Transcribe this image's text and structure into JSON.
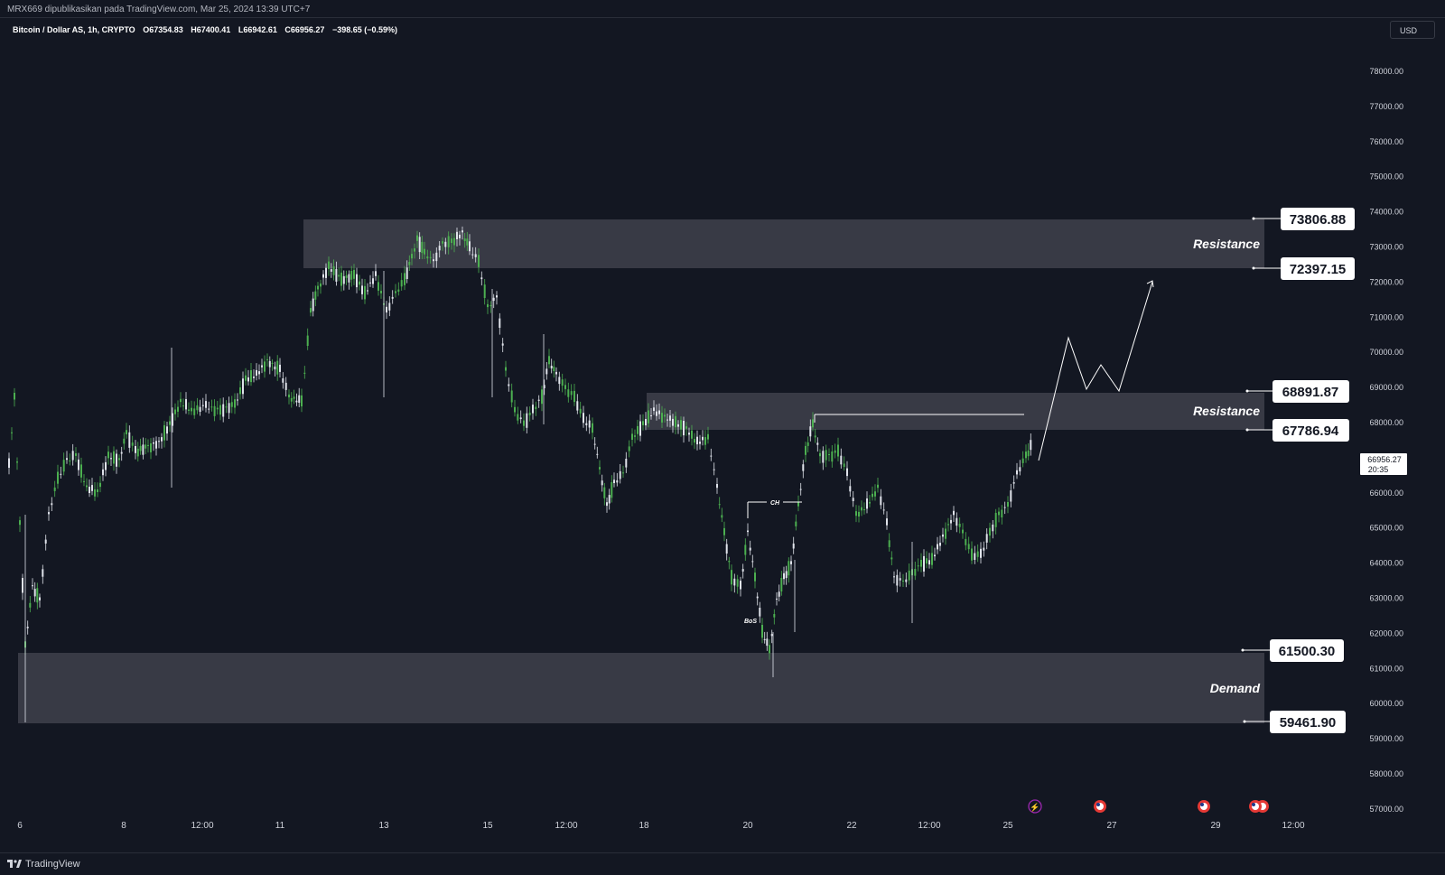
{
  "header": {
    "publish_line": "MRX669 dipublikasikan pada TradingView.com, Mar 25, 2024 13:39 UTC+7"
  },
  "symbol": {
    "name": "Bitcoin / Dollar AS, 1h, CRYPTO",
    "open": "O67354.83",
    "high": "H67400.41",
    "low": "L66942.61",
    "close": "C66956.27",
    "change": "−398.65 (−0.59%)"
  },
  "currency_button": "USD",
  "price_axis": {
    "ticks": [
      "78000.00",
      "77000.00",
      "76000.00",
      "75000.00",
      "74000.00",
      "73000.00",
      "72000.00",
      "71000.00",
      "70000.00",
      "69000.00",
      "68000.00",
      "67000.00",
      "66000.00",
      "65000.00",
      "64000.00",
      "63000.00",
      "62000.00",
      "61000.00",
      "60000.00",
      "59000.00",
      "58000.00",
      "57000.00"
    ],
    "current_price": "66956.27",
    "countdown": "20:35"
  },
  "time_axis": {
    "ticks": [
      "6",
      "8",
      "12:00",
      "11",
      "13",
      "15",
      "12:00",
      "18",
      "20",
      "22",
      "12:00",
      "25",
      "27",
      "29",
      "12:00"
    ]
  },
  "zones": [
    {
      "label": "Resistance",
      "top": "73806.88",
      "bottom": "72397.15"
    },
    {
      "label": "Resistance",
      "top": "68891.87",
      "bottom": "67786.94"
    },
    {
      "label": "Demand",
      "top": "61500.30",
      "bottom": "59461.90"
    }
  ],
  "annotations": {
    "ch": "CH",
    "bos": "BoS"
  },
  "colors": {
    "background": "#131722",
    "zone": "#3a3c48",
    "up_candle": "#4caf50",
    "down_candle": "#e0e3eb"
  },
  "footer": {
    "brand": "TradingView"
  }
}
